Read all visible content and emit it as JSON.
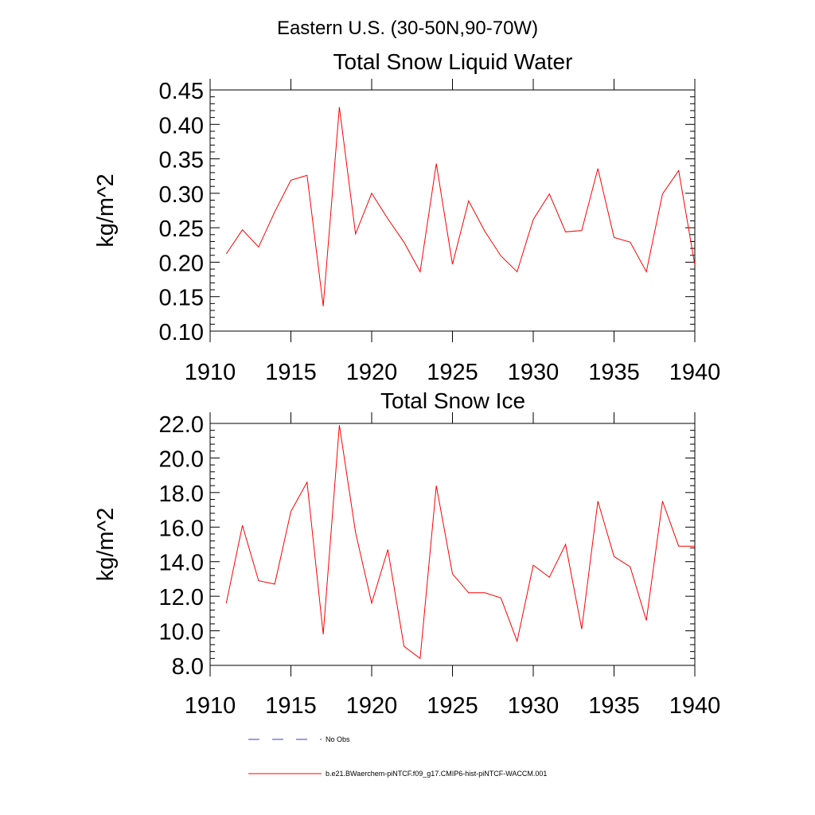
{
  "page": {
    "main_title": "Eastern U.S. (30-50N,90-70W)"
  },
  "legend": {
    "position": "bottom-center",
    "entries": [
      {
        "label": "No Obs",
        "style": "dashed",
        "color": "#3a3ad0"
      },
      {
        "label": "b.e21.BWaerchem-piNTCF.f09_g17.CMIP6-hist-piNTCF-WACCM.001",
        "style": "solid",
        "color": "#ff0000"
      }
    ]
  },
  "chart_data": [
    {
      "type": "line",
      "title": "Total Snow Liquid Water",
      "xlabel": "",
      "ylabel": "kg/m^2",
      "xlim": [
        1910,
        1940
      ],
      "ylim": [
        0.1,
        0.45
      ],
      "x_ticks": [
        "1910",
        "1915",
        "1920",
        "1925",
        "1930",
        "1935",
        "1940"
      ],
      "y_ticks": [
        "0.10",
        "0.15",
        "0.20",
        "0.25",
        "0.30",
        "0.35",
        "0.40",
        "0.45"
      ],
      "grid": false,
      "series": [
        {
          "color": "#ff0000",
          "x": [
            1911,
            1912,
            1913,
            1914,
            1915,
            1916,
            1917,
            1918,
            1919,
            1920,
            1921,
            1922,
            1923,
            1924,
            1925,
            1926,
            1927,
            1928,
            1929,
            1930,
            1931,
            1932,
            1933,
            1934,
            1935,
            1936,
            1937,
            1938,
            1939,
            1940
          ],
          "values": [
            0.212,
            0.247,
            0.222,
            0.273,
            0.319,
            0.326,
            0.136,
            0.425,
            0.241,
            0.3,
            0.263,
            0.229,
            0.186,
            0.343,
            0.197,
            0.289,
            0.245,
            0.209,
            0.186,
            0.262,
            0.299,
            0.244,
            0.246,
            0.336,
            0.236,
            0.229,
            0.186,
            0.299,
            0.333,
            0.196
          ]
        }
      ]
    },
    {
      "type": "line",
      "title": "Total Snow Ice",
      "xlabel": "",
      "ylabel": "kg/m^2",
      "xlim": [
        1910,
        1940
      ],
      "ylim": [
        8.0,
        22.0
      ],
      "x_ticks": [
        "1910",
        "1915",
        "1920",
        "1925",
        "1930",
        "1935",
        "1940"
      ],
      "y_ticks": [
        "8.0",
        "10.0",
        "12.0",
        "14.0",
        "16.0",
        "18.0",
        "20.0",
        "22.0"
      ],
      "grid": false,
      "series": [
        {
          "color": "#ff0000",
          "x": [
            1911,
            1912,
            1913,
            1914,
            1915,
            1916,
            1917,
            1918,
            1919,
            1920,
            1921,
            1922,
            1923,
            1924,
            1925,
            1926,
            1927,
            1928,
            1929,
            1930,
            1931,
            1932,
            1933,
            1934,
            1935,
            1936,
            1937,
            1938,
            1939,
            1940
          ],
          "values": [
            11.6,
            16.1,
            12.9,
            12.7,
            16.9,
            18.6,
            9.8,
            21.9,
            15.7,
            11.6,
            14.7,
            9.1,
            8.4,
            18.4,
            13.3,
            12.2,
            12.2,
            11.9,
            9.4,
            13.8,
            13.1,
            15.0,
            10.1,
            17.5,
            14.3,
            13.7,
            10.6,
            17.5,
            14.9,
            14.9
          ]
        }
      ]
    }
  ]
}
